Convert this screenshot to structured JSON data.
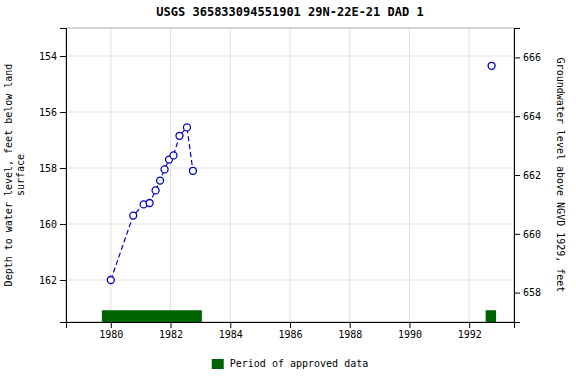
{
  "chart_data": {
    "type": "line",
    "title": "USGS 365833094551901 29N-22E-21 DAD 1",
    "ylabel": "Depth to water level, feet below land\nsurface",
    "y2label": "Groundwater level above NGVD 1929, feet",
    "series": [
      {
        "x": [
          1980.0,
          1980.75,
          1981.1,
          1981.3,
          1981.5,
          1981.65,
          1981.8,
          1981.95,
          1982.1,
          1982.3,
          1982.55,
          1982.75
        ],
        "values": [
          162.0,
          159.7,
          159.3,
          159.25,
          158.8,
          158.45,
          158.05,
          157.7,
          157.55,
          156.85,
          156.55,
          158.1
        ],
        "color": "#0000bb",
        "line_style": "dashed",
        "marker": "circle"
      },
      {
        "x": [
          1992.75
        ],
        "values": [
          154.35
        ],
        "color": "#0000bb",
        "line_style": "none",
        "marker": "circle"
      }
    ],
    "periods": {
      "name": "Period of approved data",
      "color": "#006400",
      "starts": [
        1979.7,
        1992.55
      ],
      "ends": [
        1983.05,
        1992.9
      ]
    },
    "xlim": [
      1978.5,
      1993.5
    ],
    "xticks": [
      1980,
      1982,
      1984,
      1986,
      1988,
      1990,
      1992
    ],
    "ylim": [
      163.5,
      153.0
    ],
    "yticks": [
      154.0,
      156.0,
      158.0,
      160.0,
      162.0
    ],
    "y2lim": [
      657.0,
      667.0
    ],
    "y2ticks": [
      666.0,
      664.0,
      662.0,
      660.0,
      658.0
    ],
    "grid": true,
    "legend": "bottom"
  }
}
